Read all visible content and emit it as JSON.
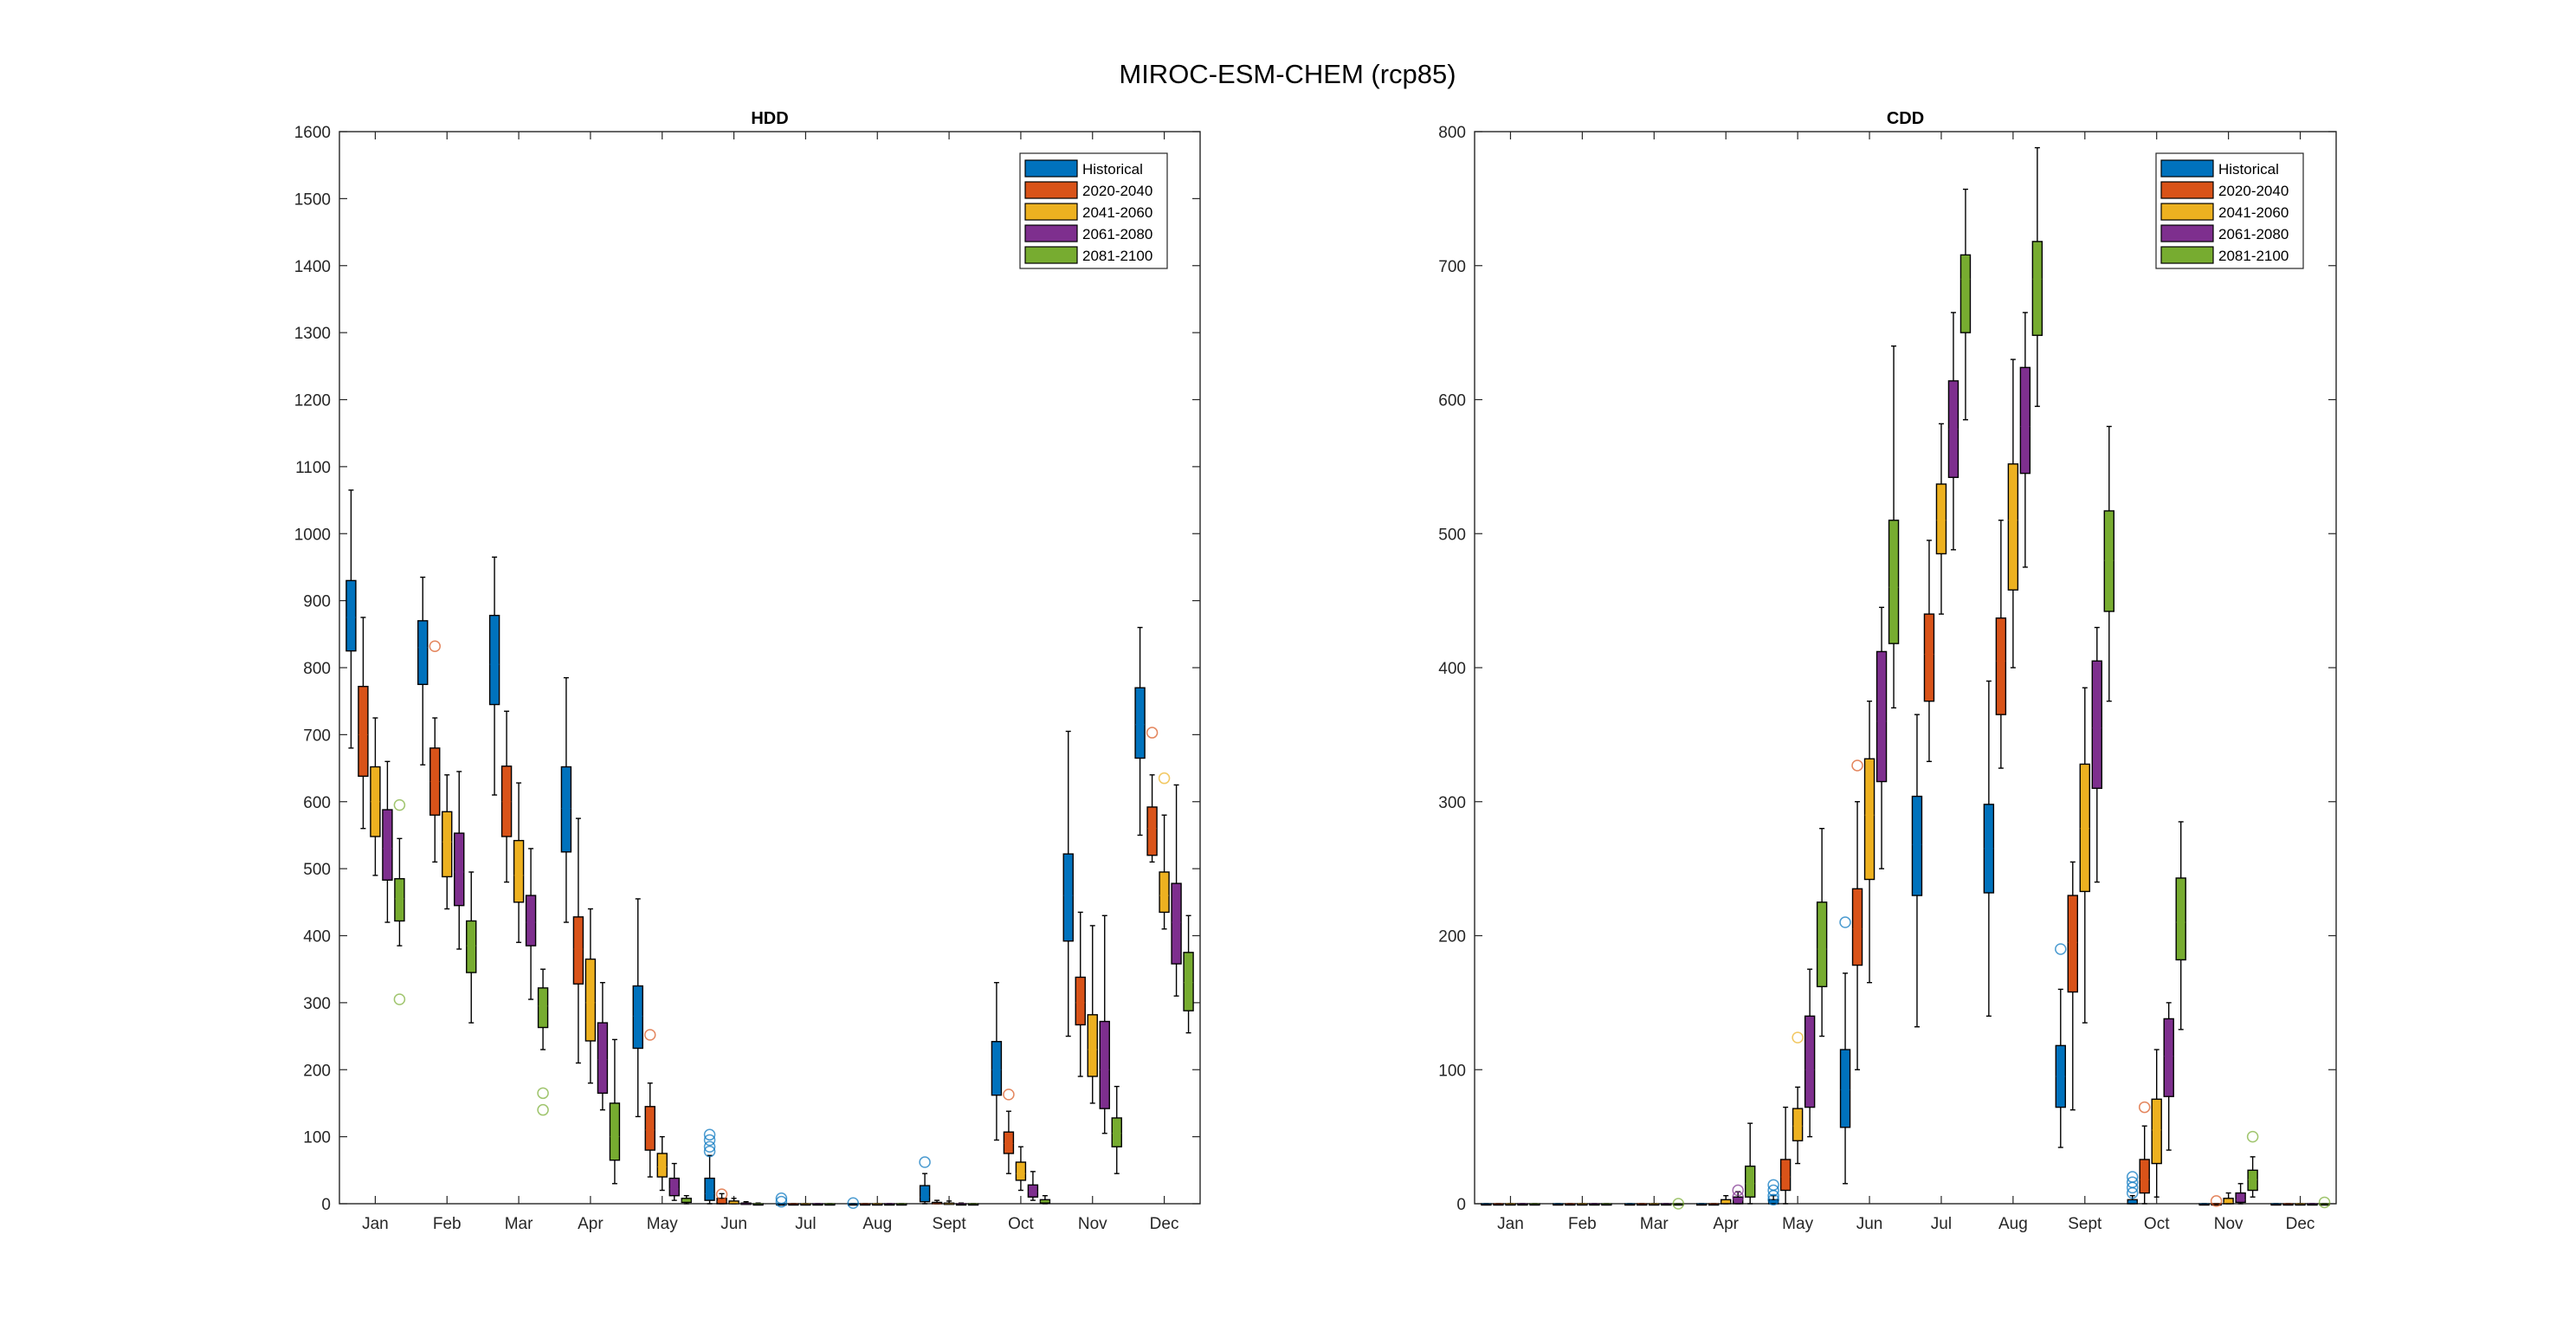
{
  "figure_title": "MIROC-ESM-CHEM (rcp85)",
  "colors": {
    "Historical": "#0072BD",
    "2020-2040": "#D95319",
    "2041-2060": "#EDB120",
    "2061-2080": "#7E2F8E",
    "2081-2100": "#77AC30"
  },
  "chart_data": [
    {
      "type": "box",
      "title": "HDD",
      "ylim": [
        0,
        1600
      ],
      "yticks": [
        0,
        100,
        200,
        300,
        400,
        500,
        600,
        700,
        800,
        900,
        1000,
        1100,
        1200,
        1300,
        1400,
        1500,
        1600
      ],
      "categories": [
        "Jan",
        "Feb",
        "Mar",
        "Apr",
        "May",
        "Jun",
        "Jul",
        "Aug",
        "Sept",
        "Oct",
        "Nov",
        "Dec"
      ],
      "legend": [
        "Historical",
        "2020-2040",
        "2041-2060",
        "2061-2080",
        "2081-2100"
      ],
      "legend_location": "top-right",
      "series": [
        {
          "name": "Historical",
          "boxes": [
            [
              680,
              825,
              875,
              930,
              1065
            ],
            [
              655,
              775,
              830,
              870,
              935
            ],
            [
              610,
              745,
              805,
              878,
              965
            ],
            [
              420,
              525,
              590,
              652,
              785
            ],
            [
              130,
              232,
              280,
              325,
              455
            ],
            [
              0,
              5,
              15,
              38,
              72
            ],
            [
              0,
              0,
              0,
              0,
              0
            ],
            [
              0,
              0,
              0,
              0,
              0
            ],
            [
              0,
              3,
              10,
              27,
              45
            ],
            [
              95,
              162,
              200,
              242,
              330
            ],
            [
              250,
              392,
              460,
              522,
              705
            ],
            [
              550,
              665,
              715,
              770,
              860
            ]
          ],
          "outliers": [
            [],
            [],
            [],
            [],
            [],
            [
              78,
              85,
              95,
              103
            ],
            [
              3,
              8
            ],
            [
              1
            ],
            [
              62
            ],
            [],
            [],
            []
          ]
        },
        {
          "name": "2020-2040",
          "boxes": [
            [
              560,
              638,
              700,
              772,
              875
            ],
            [
              510,
              580,
              630,
              680,
              725
            ],
            [
              480,
              548,
              600,
              653,
              735
            ],
            [
              210,
              328,
              380,
              428,
              575
            ],
            [
              40,
              80,
              110,
              145,
              180
            ],
            [
              0,
              0,
              3,
              8,
              15
            ],
            [
              0,
              0,
              0,
              0,
              0
            ],
            [
              0,
              0,
              0,
              0,
              0
            ],
            [
              0,
              0,
              0,
              2,
              5
            ],
            [
              45,
              75,
              90,
              107,
              138
            ],
            [
              190,
              267,
              300,
              338,
              435
            ],
            [
              510,
              520,
              560,
              592,
              640
            ]
          ],
          "outliers": [
            [],
            [
              832
            ],
            [],
            [],
            [
              252
            ],
            [
              14
            ],
            [],
            [],
            [],
            [
              163
            ],
            [],
            [
              703
            ]
          ]
        },
        {
          "name": "2041-2060",
          "boxes": [
            [
              490,
              548,
              600,
              652,
              725
            ],
            [
              440,
              488,
              540,
              585,
              640
            ],
            [
              390,
              450,
              490,
              542,
              628
            ],
            [
              180,
              243,
              300,
              365,
              440
            ],
            [
              20,
              40,
              55,
              75,
              100
            ],
            [
              0,
              0,
              1,
              4,
              8
            ],
            [
              0,
              0,
              0,
              0,
              0
            ],
            [
              0,
              0,
              0,
              0,
              0
            ],
            [
              0,
              0,
              0,
              1,
              4
            ],
            [
              20,
              35,
              45,
              62,
              85
            ],
            [
              150,
              190,
              230,
              282,
              415
            ],
            [
              410,
              435,
              460,
              495,
              580
            ]
          ],
          "outliers": [
            [],
            [],
            [],
            [],
            [],
            [],
            [],
            [],
            [],
            [],
            [],
            [
              635
            ]
          ]
        },
        {
          "name": "2061-2080",
          "boxes": [
            [
              420,
              483,
              530,
              588,
              660
            ],
            [
              380,
              445,
              495,
              553,
              645
            ],
            [
              305,
              385,
              420,
              460,
              530
            ],
            [
              140,
              165,
              215,
              270,
              330
            ],
            [
              5,
              12,
              22,
              38,
              60
            ],
            [
              0,
              0,
              0,
              1,
              3
            ],
            [
              0,
              0,
              0,
              0,
              0
            ],
            [
              0,
              0,
              0,
              0,
              0
            ],
            [
              0,
              0,
              0,
              0,
              1
            ],
            [
              5,
              10,
              18,
              28,
              48
            ],
            [
              105,
              142,
              200,
              272,
              430
            ],
            [
              310,
              358,
              420,
              478,
              625
            ]
          ],
          "outliers": [
            [],
            [],
            [],
            [],
            [],
            [],
            [],
            [],
            [],
            [],
            [],
            []
          ]
        },
        {
          "name": "2081-2100",
          "boxes": [
            [
              385,
              422,
              455,
              485,
              545
            ],
            [
              270,
              345,
              385,
              422,
              495
            ],
            [
              230,
              263,
              295,
              322,
              350
            ],
            [
              30,
              65,
              100,
              150,
              245
            ],
            [
              0,
              2,
              4,
              8,
              12
            ],
            [
              0,
              0,
              0,
              0,
              1
            ],
            [
              0,
              0,
              0,
              0,
              0
            ],
            [
              0,
              0,
              0,
              0,
              0
            ],
            [
              0,
              0,
              0,
              0,
              0
            ],
            [
              0,
              1,
              3,
              6,
              12
            ],
            [
              45,
              85,
              105,
              128,
              175
            ],
            [
              255,
              288,
              330,
              375,
              430
            ]
          ],
          "outliers": [
            [
              595,
              305
            ],
            [],
            [
              165,
              140
            ],
            [],
            [],
            [],
            [],
            [],
            [],
            [],
            [],
            []
          ]
        }
      ]
    },
    {
      "type": "box",
      "title": "CDD",
      "ylim": [
        0,
        800
      ],
      "yticks": [
        0,
        100,
        200,
        300,
        400,
        500,
        600,
        700,
        800
      ],
      "categories": [
        "Jan",
        "Feb",
        "Mar",
        "Apr",
        "May",
        "Jun",
        "Jul",
        "Aug",
        "Sept",
        "Oct",
        "Nov",
        "Dec"
      ],
      "legend": [
        "Historical",
        "2020-2040",
        "2041-2060",
        "2061-2080",
        "2081-2100"
      ],
      "legend_location": "top-right",
      "series": [
        {
          "name": "Historical",
          "boxes": [
            [
              0,
              0,
              0,
              0,
              0
            ],
            [
              0,
              0,
              0,
              0,
              0
            ],
            [
              0,
              0,
              0,
              0,
              0
            ],
            [
              0,
              0,
              0,
              0,
              0
            ],
            [
              0,
              0,
              1,
              3,
              6
            ],
            [
              15,
              57,
              85,
              115,
              172
            ],
            [
              132,
              230,
              268,
              304,
              365
            ],
            [
              140,
              232,
              265,
              298,
              390
            ],
            [
              42,
              72,
              95,
              118,
              160
            ],
            [
              0,
              0,
              1,
              3,
              6
            ],
            [
              0,
              0,
              0,
              0,
              0
            ],
            [
              0,
              0,
              0,
              0,
              0
            ]
          ],
          "outliers": [
            [],
            [],
            [],
            [],
            [
              3,
              6,
              10,
              14
            ],
            [
              210
            ],
            [],
            [],
            [
              190
            ],
            [
              8,
              12,
              16,
              20
            ],
            [],
            []
          ]
        },
        {
          "name": "2020-2040",
          "boxes": [
            [
              0,
              0,
              0,
              0,
              0
            ],
            [
              0,
              0,
              0,
              0,
              0
            ],
            [
              0,
              0,
              0,
              0,
              0
            ],
            [
              0,
              0,
              0,
              0,
              0
            ],
            [
              0,
              10,
              20,
              33,
              72
            ],
            [
              100,
              178,
              205,
              235,
              300
            ],
            [
              330,
              375,
              410,
              440,
              495
            ],
            [
              325,
              365,
              405,
              437,
              510
            ],
            [
              70,
              158,
              195,
              230,
              255
            ],
            [
              0,
              8,
              18,
              33,
              58
            ],
            [
              0,
              0,
              0,
              0,
              0
            ],
            [
              0,
              0,
              0,
              0,
              0
            ]
          ],
          "outliers": [
            [],
            [],
            [],
            [],
            [],
            [
              327
            ],
            [],
            [],
            [],
            [
              72
            ],
            [
              2
            ],
            []
          ]
        },
        {
          "name": "2041-2060",
          "boxes": [
            [
              0,
              0,
              0,
              0,
              0
            ],
            [
              0,
              0,
              0,
              0,
              0
            ],
            [
              0,
              0,
              0,
              0,
              0
            ],
            [
              0,
              0,
              1,
              3,
              6
            ],
            [
              30,
              47,
              58,
              71,
              87
            ],
            [
              165,
              242,
              290,
              332,
              375
            ],
            [
              440,
              485,
              510,
              537,
              582
            ],
            [
              400,
              458,
              510,
              552,
              630
            ],
            [
              135,
              233,
              280,
              328,
              385
            ],
            [
              5,
              30,
              55,
              78,
              115
            ],
            [
              0,
              0,
              1,
              4,
              8
            ],
            [
              0,
              0,
              0,
              0,
              0
            ]
          ],
          "outliers": [
            [],
            [],
            [],
            [],
            [
              124
            ],
            [],
            [],
            [],
            [],
            [],
            [],
            []
          ]
        },
        {
          "name": "2061-2080",
          "boxes": [
            [
              0,
              0,
              0,
              0,
              0
            ],
            [
              0,
              0,
              0,
              0,
              0
            ],
            [
              0,
              0,
              0,
              0,
              0
            ],
            [
              0,
              0,
              2,
              5,
              9
            ],
            [
              50,
              72,
              100,
              140,
              175
            ],
            [
              250,
              315,
              360,
              412,
              445
            ],
            [
              488,
              542,
              578,
              614,
              665
            ],
            [
              475,
              545,
              580,
              624,
              665
            ],
            [
              240,
              310,
              355,
              405,
              430
            ],
            [
              40,
              80,
              110,
              138,
              150
            ],
            [
              0,
              1,
              3,
              8,
              15
            ],
            [
              0,
              0,
              0,
              0,
              0
            ]
          ],
          "outliers": [
            [],
            [],
            [],
            [
              10,
              5
            ],
            [],
            [],
            [],
            [],
            [],
            [],
            [],
            []
          ]
        },
        {
          "name": "2081-2100",
          "boxes": [
            [
              0,
              0,
              0,
              0,
              0
            ],
            [
              0,
              0,
              0,
              0,
              0
            ],
            [
              0,
              0,
              0,
              0,
              0
            ],
            [
              0,
              5,
              15,
              28,
              60
            ],
            [
              125,
              162,
              190,
              225,
              280
            ],
            [
              370,
              418,
              460,
              510,
              640
            ],
            [
              585,
              650,
              690,
              708,
              757
            ],
            [
              595,
              648,
              690,
              718,
              788
            ],
            [
              375,
              442,
              480,
              517,
              580
            ],
            [
              130,
              182,
              210,
              243,
              285
            ],
            [
              5,
              10,
              18,
              25,
              35
            ],
            [
              0,
              0,
              0,
              0,
              0
            ]
          ],
          "outliers": [
            [],
            [],
            [
              0
            ],
            [],
            [],
            [],
            [],
            [],
            [],
            [],
            [
              50
            ],
            [
              1
            ]
          ]
        }
      ]
    }
  ]
}
